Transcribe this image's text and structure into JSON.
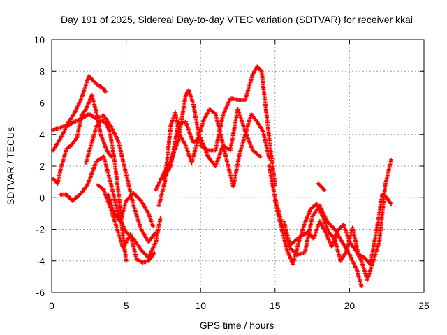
{
  "chart_data": {
    "type": "scatter",
    "title": "Day 191 of 2025, Sidereal Day-to-day VTEC variation (SDTVAR) for receiver kkai",
    "xlabel": "GPS time / hours",
    "ylabel": "SDTVAR / TECUs",
    "xlim": [
      0,
      25
    ],
    "ylim": [
      -6,
      10
    ],
    "xticks": [
      0,
      5,
      10,
      15,
      20,
      25
    ],
    "yticks": [
      -6,
      -4,
      -2,
      0,
      2,
      4,
      6,
      8,
      10
    ],
    "xtick_labels": [
      "0",
      "5",
      "10",
      "15",
      "20",
      "25"
    ],
    "ytick_labels": [
      "-6",
      "-4",
      "-2",
      "0",
      "2",
      "4",
      "6",
      "8",
      "10"
    ],
    "grid": true,
    "marker": "+",
    "color": "#ff0000",
    "series": [
      {
        "name": "s1",
        "x": [
          0.1,
          0.5,
          1.0,
          1.5,
          2.0,
          2.5,
          2.7,
          3.0,
          3.5,
          3.6
        ],
        "y": [
          4.3,
          4.4,
          4.6,
          5.3,
          6.3,
          7.7,
          7.5,
          7.2,
          6.9,
          6.7
        ]
      },
      {
        "name": "s2",
        "x": [
          0.1,
          0.5,
          1.0,
          1.5,
          2.0,
          2.5,
          3.0,
          3.5,
          4.0,
          4.5,
          5.0,
          5.5,
          6.0,
          6.5,
          7.0
        ],
        "y": [
          3.0,
          3.6,
          4.5,
          4.8,
          5.0,
          5.3,
          5.0,
          5.2,
          4.5,
          3.5,
          1.5,
          -0.5,
          -2.0,
          -2.8,
          -2.2
        ]
      },
      {
        "name": "s3",
        "x": [
          0.1,
          0.4,
          0.6,
          1.0,
          1.3,
          1.7,
          2.0,
          2.3,
          2.7,
          3.0,
          3.3,
          3.7,
          4.0
        ],
        "y": [
          1.2,
          0.9,
          1.8,
          3.1,
          3.3,
          3.8,
          5.2,
          5.6,
          6.5,
          5.4,
          4.0,
          3.0,
          2.6
        ]
      },
      {
        "name": "s4",
        "x": [
          0.6,
          1.0,
          1.4,
          2.0,
          2.4,
          3.0,
          3.5,
          4.0,
          4.5,
          5.0,
          5.5,
          6.0,
          6.5,
          7.0,
          7.3
        ],
        "y": [
          0.2,
          0.2,
          -0.2,
          0.3,
          0.8,
          2.3,
          2.6,
          0.8,
          -1.2,
          -2.2,
          -2.6,
          -3.3,
          -3.8,
          -2.8,
          -1.3
        ]
      },
      {
        "name": "s5",
        "x": [
          2.3,
          2.7,
          3.0,
          3.3,
          3.6,
          3.9,
          4.2,
          4.5,
          4.8,
          5.0
        ],
        "y": [
          2.2,
          3.5,
          4.5,
          4.9,
          4.8,
          4.2,
          2.5,
          0.2,
          -2.5,
          -4.0
        ]
      },
      {
        "name": "s6",
        "x": [
          3.1,
          3.5,
          4.0,
          4.4,
          4.8,
          5.3,
          5.7,
          6.1,
          6.5,
          6.9
        ],
        "y": [
          0.8,
          0.5,
          -0.8,
          -2.0,
          -3.2,
          -2.3,
          -3.9,
          -4.1,
          -4.0,
          -3.5
        ]
      },
      {
        "name": "s7",
        "x": [
          3.8,
          4.2,
          4.6,
          5.0,
          5.5,
          6.0,
          6.5,
          6.8
        ],
        "y": [
          0.2,
          -1.0,
          -1.5,
          -0.2,
          0.3,
          -0.2,
          -1.0,
          -1.8
        ]
      },
      {
        "name": "s8",
        "x": [
          7.0,
          7.5,
          8.0,
          8.5,
          9.0,
          9.2,
          9.5,
          10.0,
          10.5,
          11.0,
          11.5,
          12.0,
          12.5,
          13.0,
          13.5,
          13.8,
          14.1,
          14.4,
          14.7,
          15.0
        ],
        "y": [
          0.5,
          1.5,
          2.3,
          3.6,
          6.5,
          6.8,
          6.0,
          3.3,
          3.0,
          3.0,
          5.2,
          6.3,
          6.2,
          6.2,
          7.8,
          8.3,
          8.0,
          5.5,
          3.0,
          0.8
        ]
      },
      {
        "name": "s9",
        "x": [
          7.2,
          7.6,
          8.0,
          8.3,
          8.6,
          9.0,
          9.4,
          9.8,
          10.2,
          10.6,
          11.0,
          11.4,
          11.8,
          12.2,
          12.6,
          13.0,
          13.4,
          13.8,
          14.2,
          14.6
        ],
        "y": [
          -0.5,
          1.0,
          4.6,
          5.4,
          4.0,
          3.3,
          2.2,
          3.6,
          4.9,
          5.6,
          5.3,
          3.8,
          2.2,
          0.7,
          2.7,
          4.0,
          5.3,
          4.8,
          4.2,
          2.5
        ]
      },
      {
        "name": "s10",
        "x": [
          7.5,
          8.0,
          8.5,
          9.0,
          9.5,
          10.0,
          10.5,
          11.0,
          11.5,
          12.0,
          12.5,
          13.0,
          13.5,
          14.0
        ],
        "y": [
          1.2,
          2.0,
          4.7,
          4.8,
          3.5,
          3.8,
          2.6,
          2.0,
          3.3,
          3.0,
          5.6,
          4.2,
          3.0,
          2.6
        ]
      },
      {
        "name": "s11",
        "x": [
          14.6,
          15.0,
          15.5,
          16.0,
          16.5,
          17.0,
          17.5,
          18.0,
          18.5,
          19.0,
          19.5,
          20.0,
          20.5,
          20.8
        ],
        "y": [
          2.0,
          0.0,
          -1.8,
          -3.2,
          -3.6,
          -3.5,
          -1.2,
          -0.5,
          -1.5,
          -2.0,
          -2.8,
          -3.6,
          -4.6,
          -5.6
        ]
      },
      {
        "name": "s12",
        "x": [
          15.0,
          15.4,
          15.8,
          16.2,
          16.6,
          17.0,
          17.4,
          17.8,
          18.2,
          18.6,
          19.0,
          19.4,
          19.8,
          20.2,
          20.6,
          21.0,
          21.4,
          21.8,
          22.2,
          22.5,
          22.8
        ],
        "y": [
          -0.2,
          -1.8,
          -3.3,
          -4.2,
          -2.8,
          -1.6,
          -0.7,
          -0.4,
          -1.2,
          -2.2,
          -2.6,
          -4.0,
          -3.4,
          -1.9,
          -3.6,
          -3.8,
          -4.2,
          -2.2,
          0.2,
          0.0,
          -0.4
        ]
      },
      {
        "name": "s13",
        "x": [
          15.6,
          16.0,
          16.4,
          16.8,
          17.2,
          17.6,
          18.0,
          18.4,
          18.8,
          19.2,
          19.6,
          20.0,
          20.4,
          20.8,
          21.2,
          21.6,
          22.0,
          22.4,
          22.8
        ],
        "y": [
          -1.5,
          -3.0,
          -2.7,
          -2.4,
          -2.2,
          -2.6,
          -1.5,
          -2.2,
          -3.1,
          -2.1,
          -1.7,
          -2.8,
          -3.3,
          -4.0,
          -5.2,
          -4.0,
          -2.8,
          0.8,
          2.4
        ]
      },
      {
        "name": "s14",
        "x": [
          17.9,
          18.1,
          18.3
        ],
        "y": [
          0.9,
          0.7,
          0.5
        ]
      }
    ]
  }
}
